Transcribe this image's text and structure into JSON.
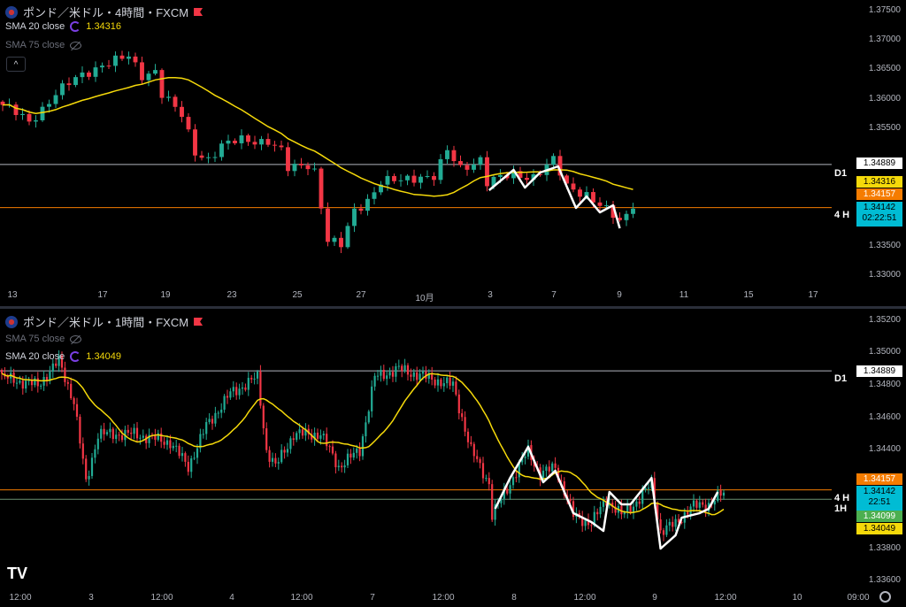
{
  "top_pane": {
    "title": "ポンド／米ドル・4時間・FXCM",
    "indicators": [
      {
        "label": "SMA 20 close",
        "value": "1.34316",
        "visible": true
      },
      {
        "label": "SMA 75 close",
        "visible": false
      }
    ],
    "collapse_label": "^",
    "price_ticks": [
      "1.37500",
      "1.37000",
      "1.36500",
      "1.36000",
      "1.35500",
      "1.33500",
      "1.33000"
    ],
    "time_ticks": [
      "13",
      "17",
      "19",
      "23",
      "25",
      "27",
      "10月",
      "3",
      "7",
      "9",
      "11",
      "15",
      "17"
    ],
    "tags": {
      "d1": "1.34889",
      "sma20": "1.34316",
      "h4_level": "1.34157",
      "last": "1.34142",
      "countdown": "02:22:51"
    },
    "tf_labels": {
      "d1": "D1",
      "h4": "4 H"
    }
  },
  "bottom_pane": {
    "title": "ポンド／米ドル・1時間・FXCM",
    "indicators": [
      {
        "label": "SMA 75 close",
        "visible": false
      },
      {
        "label": "SMA 20 close",
        "value": "1.34049",
        "visible": true
      }
    ],
    "price_ticks": [
      "1.35200",
      "1.35000",
      "1.34800",
      "1.34600",
      "1.34400",
      "1.33800",
      "1.33600"
    ],
    "time_ticks": [
      "12:00",
      "3",
      "12:00",
      "4",
      "12:00",
      "7",
      "12:00",
      "8",
      "12:00",
      "9",
      "12:00",
      "10",
      "09:00"
    ],
    "tags": {
      "d1": "1.34889",
      "h4_level": "1.34157",
      "last": "1.34142",
      "countdown": "22:51",
      "h1_level": "1.34099",
      "sma20": "1.34049"
    },
    "tf_labels": {
      "d1": "D1",
      "h4": "4 H",
      "h1": "1H"
    }
  },
  "logo": "TV",
  "colors": {
    "up": "#22ab94",
    "down": "#f23645",
    "sma": "#f5d90a",
    "d1": "#b2b5be",
    "h4": "#f57c00",
    "h1": "#4caf50",
    "last": "#00bcd4"
  },
  "chart_data": [
    {
      "type": "candlestick",
      "title": "GBP/USD 4H",
      "ylim": [
        1.3275,
        1.3765
      ],
      "close_keypoints": [
        [
          0,
          1.359
        ],
        [
          4,
          1.356
        ],
        [
          8,
          1.361
        ],
        [
          12,
          1.364
        ],
        [
          15,
          1.366
        ],
        [
          19,
          1.367
        ],
        [
          21,
          1.364
        ],
        [
          23,
          1.365
        ],
        [
          24,
          1.361
        ],
        [
          27,
          1.357
        ],
        [
          29,
          1.351
        ],
        [
          31,
          1.35
        ],
        [
          33,
          1.352
        ],
        [
          36,
          1.353
        ],
        [
          40,
          1.353
        ],
        [
          42,
          1.351
        ],
        [
          43,
          1.348
        ],
        [
          46,
          1.349
        ],
        [
          47,
          1.348
        ],
        [
          49,
          1.336
        ],
        [
          51,
          1.335
        ],
        [
          53,
          1.341
        ],
        [
          55,
          1.343
        ],
        [
          57,
          1.346
        ],
        [
          60,
          1.346
        ],
        [
          63,
          1.347
        ],
        [
          65,
          1.347
        ],
        [
          67,
          1.351
        ],
        [
          69,
          1.348
        ],
        [
          72,
          1.35
        ],
        [
          73,
          1.346
        ],
        [
          77,
          1.347
        ],
        [
          80,
          1.347
        ],
        [
          83,
          1.3495
        ],
        [
          85,
          1.345
        ],
        [
          88,
          1.344
        ],
        [
          91,
          1.341
        ],
        [
          93,
          1.339
        ],
        [
          95,
          1.3414
        ]
      ],
      "candles": 96,
      "zigzag": [
        [
          73.3,
          1.34452
        ],
        [
          77,
          1.34797
        ],
        [
          78.7,
          1.34497
        ],
        [
          81,
          1.34752
        ],
        [
          83.7,
          1.34857
        ],
        [
          86.4,
          1.34152
        ],
        [
          88,
          1.34347
        ],
        [
          90,
          1.34077
        ],
        [
          92,
          1.34197
        ],
        [
          93,
          1.33806
        ]
      ],
      "levels": {
        "d1": 1.34889,
        "h4": 1.34157
      },
      "last": 1.34142,
      "sma_period": 20
    },
    {
      "type": "candlestick",
      "title": "GBP/USD 1H",
      "ylim": [
        1.335,
        1.353
      ],
      "close_keypoints": [
        [
          0,
          1.3485
        ],
        [
          12,
          1.348
        ],
        [
          19,
          1.3495
        ],
        [
          24,
          1.347
        ],
        [
          28,
          1.342
        ],
        [
          32,
          1.345
        ],
        [
          44,
          1.345
        ],
        [
          56,
          1.3445
        ],
        [
          62,
          1.343
        ],
        [
          68,
          1.3455
        ],
        [
          76,
          1.3475
        ],
        [
          85,
          1.3485
        ],
        [
          88,
          1.344
        ],
        [
          91,
          1.343
        ],
        [
          97,
          1.345
        ],
        [
          106,
          1.345
        ],
        [
          112,
          1.343
        ],
        [
          119,
          1.344
        ],
        [
          124,
          1.3485
        ],
        [
          132,
          1.349
        ],
        [
          141,
          1.3485
        ],
        [
          150,
          1.348
        ],
        [
          156,
          1.344
        ],
        [
          162,
          1.342
        ],
        [
          163,
          1.34
        ],
        [
          169,
          1.342
        ],
        [
          175,
          1.344
        ],
        [
          179,
          1.3425
        ],
        [
          184,
          1.343
        ],
        [
          190,
          1.34
        ],
        [
          196,
          1.3395
        ],
        [
          201,
          1.341
        ],
        [
          206,
          1.34
        ],
        [
          212,
          1.341
        ],
        [
          216,
          1.342
        ],
        [
          219,
          1.339
        ],
        [
          224,
          1.3395
        ],
        [
          229,
          1.3405
        ],
        [
          235,
          1.3407
        ],
        [
          240,
          1.3414
        ]
      ],
      "candles": 241,
      "zigzag": [
        [
          164,
          1.34041
        ],
        [
          169,
          1.34231
        ],
        [
          175,
          1.34422
        ],
        [
          180,
          1.34204
        ],
        [
          184,
          1.34275
        ],
        [
          190,
          1.34014
        ],
        [
          196,
          1.33959
        ],
        [
          200,
          1.33905
        ],
        [
          202,
          1.34144
        ],
        [
          206,
          1.34068
        ],
        [
          209,
          1.34068
        ],
        [
          216,
          1.34231
        ],
        [
          219,
          1.33796
        ],
        [
          224,
          1.33878
        ],
        [
          226,
          1.33986
        ],
        [
          232,
          1.34014
        ],
        [
          235,
          1.34041
        ],
        [
          238,
          1.34144
        ]
      ],
      "levels": {
        "d1": 1.34889,
        "h4": 1.34157,
        "h1": 1.34099
      },
      "last": 1.34142,
      "sma_period": 20
    }
  ]
}
